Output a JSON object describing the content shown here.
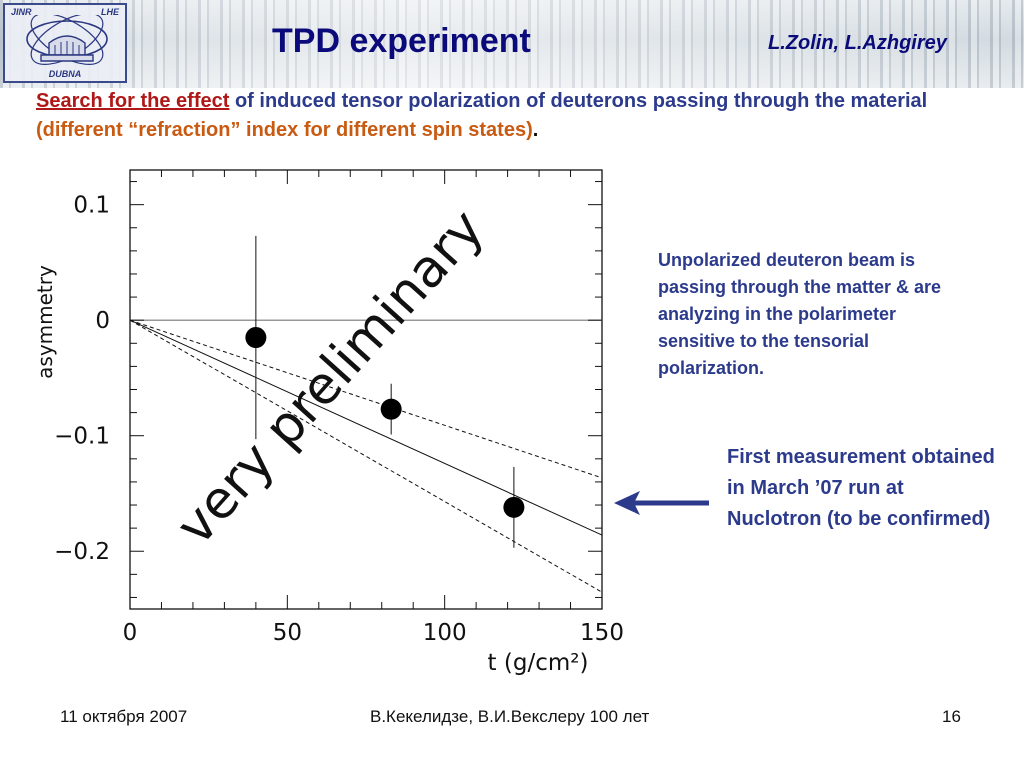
{
  "header": {
    "logo": {
      "left_text": "JINR",
      "right_text": "LHE",
      "bottom_text": "DUBNA"
    },
    "title": "TPD experiment",
    "authors": "L.Zolin, L.Azhgirey"
  },
  "intro": {
    "link_text": "Search for the effect",
    "text_1": " of induced tensor polarization of deuterons passing through the material ",
    "highlight": "(different “refraction” index for different spin states)",
    "end": "."
  },
  "notes": {
    "description": "Unpolarized deuteron beam is passing through the matter & are analyzing in the polarimeter sensitive to the tensorial polarization.",
    "first_measurement": "First measurement obtained in March ’07 run at Nuclotron (to be confirmed)"
  },
  "footer": {
    "date": "11 октября 2007",
    "center": "В.Кекелидзе,   В.И.Векслеру 100 лет",
    "page": "16"
  },
  "colors": {
    "title": "#0a0a7a",
    "body_text": "#2c3a8c",
    "link": "#b01818",
    "highlight": "#c85a12",
    "arrow": "#2c3a8c"
  },
  "icons": {
    "arrow": "arrow-left-icon"
  },
  "chart_data": {
    "type": "scatter",
    "xlabel": "t (g/cm²)",
    "ylabel": "asymmetry",
    "xlim": [
      0,
      150
    ],
    "ylim": [
      -0.25,
      0.13
    ],
    "x_ticks": [
      0,
      50,
      100,
      150
    ],
    "x_tick_labels": [
      "0",
      "50",
      "100",
      "150"
    ],
    "y_ticks": [
      0.1,
      0,
      -0.1,
      -0.2
    ],
    "y_tick_labels": [
      "0.1",
      "0",
      "−0.1",
      "−0.2"
    ],
    "reference_line": 0,
    "grid": false,
    "annotation": "very preliminary",
    "points": [
      {
        "x": 40,
        "y": -0.015,
        "err": 0.088
      },
      {
        "x": 83,
        "y": -0.077,
        "err": 0.022
      },
      {
        "x": 122,
        "y": -0.162,
        "err": 0.035
      }
    ],
    "fit": {
      "slope": -0.00124,
      "slope_low": -0.00091,
      "slope_high": -0.00157
    }
  }
}
